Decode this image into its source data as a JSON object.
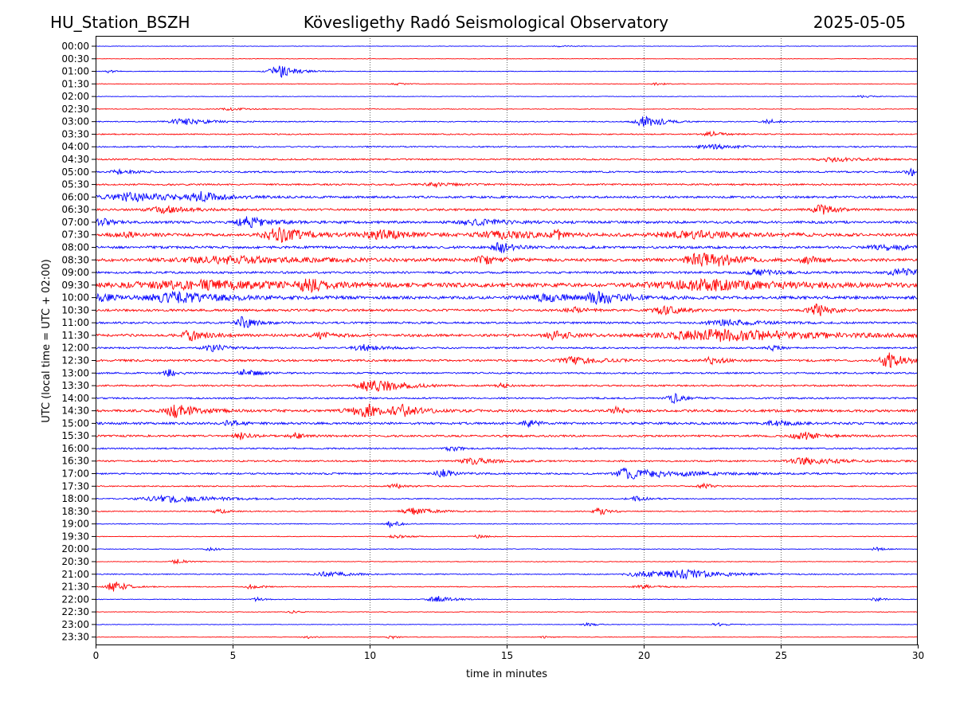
{
  "header": {
    "station": "HU_Station_BSZH",
    "observatory": "Kövesligethy Radó Seismological Observatory",
    "date": "2025-05-05"
  },
  "chart_data": {
    "type": "line",
    "title": "Kövesligethy Radó Seismological Observatory",
    "xlabel": "time in minutes",
    "ylabel": "UTC (local time = UTC + 02:00)",
    "xlim": [
      0,
      30
    ],
    "x_ticks": [
      0,
      5,
      10,
      15,
      20,
      25,
      30
    ],
    "x_gridlines": [
      5,
      10,
      15,
      20,
      25
    ],
    "grid": "vertical dotted",
    "colors": {
      "even_rows": "#0000ff",
      "odd_rows": "#ff0000"
    },
    "rows": [
      {
        "label": "00:00",
        "noise": 0.3,
        "events": [
          {
            "t": 17.0,
            "amp": 1.0,
            "dur": 0.4
          }
        ]
      },
      {
        "label": "00:30",
        "noise": 0.3,
        "events": []
      },
      {
        "label": "01:00",
        "noise": 0.35,
        "events": [
          {
            "t": 6.7,
            "amp": 9,
            "dur": 0.5
          },
          {
            "t": 0.5,
            "amp": 2,
            "dur": 0.2
          }
        ]
      },
      {
        "label": "01:30",
        "noise": 0.35,
        "events": [
          {
            "t": 11.0,
            "amp": 1.5,
            "dur": 0.3
          },
          {
            "t": 20.5,
            "amp": 1.5,
            "dur": 0.3
          }
        ]
      },
      {
        "label": "02:00",
        "noise": 0.35,
        "events": [
          {
            "t": 28.0,
            "amp": 1.2,
            "dur": 0.4
          }
        ]
      },
      {
        "label": "02:30",
        "noise": 0.4,
        "events": [
          {
            "t": 5.0,
            "amp": 1.5,
            "dur": 0.6
          }
        ]
      },
      {
        "label": "03:00",
        "noise": 0.6,
        "events": [
          {
            "t": 3.3,
            "amp": 4,
            "dur": 0.8
          },
          {
            "t": 20.1,
            "amp": 8,
            "dur": 0.5
          },
          {
            "t": 24.6,
            "amp": 3,
            "dur": 0.3
          }
        ]
      },
      {
        "label": "03:30",
        "noise": 0.7,
        "events": [
          {
            "t": 22.5,
            "amp": 3,
            "dur": 0.4
          }
        ]
      },
      {
        "label": "04:00",
        "noise": 0.8,
        "events": [
          {
            "t": 22.5,
            "amp": 3,
            "dur": 0.8
          }
        ]
      },
      {
        "label": "04:30",
        "noise": 0.9,
        "events": [
          {
            "t": 27.0,
            "amp": 3,
            "dur": 0.8
          }
        ]
      },
      {
        "label": "05:00",
        "noise": 1.0,
        "events": [
          {
            "t": 0.9,
            "amp": 3,
            "dur": 0.4
          },
          {
            "t": 29.8,
            "amp": 4,
            "dur": 0.3
          }
        ]
      },
      {
        "label": "05:30",
        "noise": 1.0,
        "events": [
          {
            "t": 12.5,
            "amp": 2.5,
            "dur": 0.6
          }
        ]
      },
      {
        "label": "06:00",
        "noise": 1.3,
        "events": [
          {
            "t": 1.5,
            "amp": 5,
            "dur": 1.5
          },
          {
            "t": 3.9,
            "amp": 5,
            "dur": 0.6
          }
        ]
      },
      {
        "label": "06:30",
        "noise": 1.3,
        "events": [
          {
            "t": 2.5,
            "amp": 4,
            "dur": 0.8
          },
          {
            "t": 26.5,
            "amp": 6,
            "dur": 0.4
          }
        ]
      },
      {
        "label": "07:00",
        "noise": 1.5,
        "events": [
          {
            "t": 0.2,
            "amp": 5,
            "dur": 0.3
          },
          {
            "t": 5.6,
            "amp": 7,
            "dur": 0.6
          },
          {
            "t": 14.0,
            "amp": 3,
            "dur": 1.0
          }
        ]
      },
      {
        "label": "07:30",
        "noise": 1.6,
        "events": [
          {
            "t": 1.0,
            "amp": 4,
            "dur": 0.6
          },
          {
            "t": 6.8,
            "amp": 8,
            "dur": 1.0
          },
          {
            "t": 10.5,
            "amp": 5,
            "dur": 1.0
          },
          {
            "t": 15.0,
            "amp": 4,
            "dur": 1.5
          },
          {
            "t": 16.8,
            "amp": 6,
            "dur": 0.2
          },
          {
            "t": 22.0,
            "amp": 4,
            "dur": 2.0
          }
        ]
      },
      {
        "label": "08:00",
        "noise": 1.5,
        "events": [
          {
            "t": 14.8,
            "amp": 6,
            "dur": 0.4
          },
          {
            "t": 29.0,
            "amp": 3,
            "dur": 1.0
          }
        ]
      },
      {
        "label": "08:30",
        "noise": 1.8,
        "events": [
          {
            "t": 5.0,
            "amp": 4,
            "dur": 2.5
          },
          {
            "t": 14.2,
            "amp": 6,
            "dur": 0.4
          },
          {
            "t": 22.0,
            "amp": 9,
            "dur": 0.6
          },
          {
            "t": 23.0,
            "amp": 5,
            "dur": 0.6
          },
          {
            "t": 26.0,
            "amp": 4,
            "dur": 0.4
          }
        ]
      },
      {
        "label": "09:00",
        "noise": 1.3,
        "events": [
          {
            "t": 24.2,
            "amp": 4,
            "dur": 0.5
          },
          {
            "t": 29.5,
            "amp": 4,
            "dur": 0.8
          }
        ]
      },
      {
        "label": "09:30",
        "noise": 2.0,
        "events": [
          {
            "t": 4.0,
            "amp": 5,
            "dur": 4.0
          },
          {
            "t": 7.8,
            "amp": 6,
            "dur": 0.5
          },
          {
            "t": 22.5,
            "amp": 6,
            "dur": 3.0
          }
        ]
      },
      {
        "label": "10:00",
        "noise": 1.8,
        "events": [
          {
            "t": 0.2,
            "amp": 5,
            "dur": 0.4
          },
          {
            "t": 3.0,
            "amp": 6,
            "dur": 1.5
          },
          {
            "t": 16.5,
            "amp": 4,
            "dur": 1.0
          },
          {
            "t": 18.5,
            "amp": 7,
            "dur": 0.8
          }
        ]
      },
      {
        "label": "10:30",
        "noise": 1.4,
        "events": [
          {
            "t": 17.5,
            "amp": 4,
            "dur": 0.4
          },
          {
            "t": 20.8,
            "amp": 5,
            "dur": 0.6
          },
          {
            "t": 26.4,
            "amp": 7,
            "dur": 0.5
          }
        ]
      },
      {
        "label": "11:00",
        "noise": 1.2,
        "events": [
          {
            "t": 5.4,
            "amp": 7,
            "dur": 0.4
          },
          {
            "t": 23.0,
            "amp": 4,
            "dur": 1.0
          }
        ]
      },
      {
        "label": "11:30",
        "noise": 1.6,
        "events": [
          {
            "t": 3.5,
            "amp": 6,
            "dur": 0.5
          },
          {
            "t": 8.2,
            "amp": 4,
            "dur": 0.4
          },
          {
            "t": 16.8,
            "amp": 5,
            "dur": 0.5
          },
          {
            "t": 23.0,
            "amp": 7,
            "dur": 3.0
          }
        ]
      },
      {
        "label": "12:00",
        "noise": 1.0,
        "events": [
          {
            "t": 4.3,
            "amp": 4,
            "dur": 0.5
          },
          {
            "t": 9.8,
            "amp": 4,
            "dur": 0.6
          },
          {
            "t": 24.7,
            "amp": 3,
            "dur": 0.3
          }
        ]
      },
      {
        "label": "12:30",
        "noise": 1.3,
        "events": [
          {
            "t": 17.5,
            "amp": 4,
            "dur": 0.8
          },
          {
            "t": 22.5,
            "amp": 4,
            "dur": 0.4
          },
          {
            "t": 29.0,
            "amp": 9,
            "dur": 0.5
          }
        ]
      },
      {
        "label": "13:00",
        "noise": 1.0,
        "events": [
          {
            "t": 2.7,
            "amp": 4,
            "dur": 0.3
          },
          {
            "t": 5.5,
            "amp": 4,
            "dur": 0.4
          }
        ]
      },
      {
        "label": "13:30",
        "noise": 1.0,
        "events": [
          {
            "t": 9.9,
            "amp": 6,
            "dur": 0.5
          },
          {
            "t": 10.7,
            "amp": 5,
            "dur": 0.8
          },
          {
            "t": 14.8,
            "amp": 3,
            "dur": 0.2
          }
        ]
      },
      {
        "label": "14:00",
        "noise": 1.0,
        "events": [
          {
            "t": 21.1,
            "amp": 6,
            "dur": 0.3
          }
        ]
      },
      {
        "label": "14:30",
        "noise": 1.5,
        "events": [
          {
            "t": 3.0,
            "amp": 8,
            "dur": 0.6
          },
          {
            "t": 10.0,
            "amp": 7,
            "dur": 1.0
          },
          {
            "t": 11.2,
            "amp": 5,
            "dur": 0.4
          },
          {
            "t": 19.0,
            "amp": 4,
            "dur": 0.3
          }
        ]
      },
      {
        "label": "15:00",
        "noise": 1.4,
        "events": [
          {
            "t": 4.9,
            "amp": 4,
            "dur": 0.3
          },
          {
            "t": 15.8,
            "amp": 4,
            "dur": 0.3
          },
          {
            "t": 24.8,
            "amp": 4,
            "dur": 0.4
          }
        ]
      },
      {
        "label": "15:30",
        "noise": 1.2,
        "events": [
          {
            "t": 5.3,
            "amp": 4,
            "dur": 0.3
          },
          {
            "t": 7.3,
            "amp": 4,
            "dur": 0.3
          },
          {
            "t": 25.8,
            "amp": 5,
            "dur": 0.5
          }
        ]
      },
      {
        "label": "16:00",
        "noise": 0.9,
        "events": [
          {
            "t": 13.0,
            "amp": 3,
            "dur": 0.3
          }
        ]
      },
      {
        "label": "16:30",
        "noise": 1.0,
        "events": [
          {
            "t": 13.8,
            "amp": 4,
            "dur": 0.6
          },
          {
            "t": 26.0,
            "amp": 4,
            "dur": 1.0
          }
        ]
      },
      {
        "label": "17:00",
        "noise": 1.0,
        "events": [
          {
            "t": 12.7,
            "amp": 5,
            "dur": 0.4
          },
          {
            "t": 19.4,
            "amp": 8,
            "dur": 0.5
          },
          {
            "t": 21.0,
            "amp": 3,
            "dur": 1.5
          }
        ]
      },
      {
        "label": "17:30",
        "noise": 0.7,
        "events": [
          {
            "t": 11.0,
            "amp": 3,
            "dur": 0.4
          },
          {
            "t": 22.2,
            "amp": 3,
            "dur": 0.3
          }
        ]
      },
      {
        "label": "18:00",
        "noise": 0.6,
        "events": [
          {
            "t": 2.9,
            "amp": 4,
            "dur": 1.6
          },
          {
            "t": 19.7,
            "amp": 3,
            "dur": 0.4
          }
        ]
      },
      {
        "label": "18:30",
        "noise": 0.6,
        "events": [
          {
            "t": 4.5,
            "amp": 3,
            "dur": 0.3
          },
          {
            "t": 11.6,
            "amp": 5,
            "dur": 0.6
          },
          {
            "t": 18.4,
            "amp": 5,
            "dur": 0.3
          }
        ]
      },
      {
        "label": "19:00",
        "noise": 0.5,
        "events": [
          {
            "t": 10.8,
            "amp": 4,
            "dur": 0.3
          }
        ]
      },
      {
        "label": "19:30",
        "noise": 0.4,
        "events": [
          {
            "t": 11.0,
            "amp": 2,
            "dur": 0.4
          },
          {
            "t": 14.0,
            "amp": 2,
            "dur": 0.3
          }
        ]
      },
      {
        "label": "20:00",
        "noise": 0.4,
        "events": [
          {
            "t": 4.2,
            "amp": 2,
            "dur": 0.3
          },
          {
            "t": 28.5,
            "amp": 2,
            "dur": 0.3
          }
        ]
      },
      {
        "label": "20:30",
        "noise": 0.4,
        "events": [
          {
            "t": 3.0,
            "amp": 3,
            "dur": 0.3
          }
        ]
      },
      {
        "label": "21:00",
        "noise": 0.6,
        "events": [
          {
            "t": 8.5,
            "amp": 3,
            "dur": 0.8
          },
          {
            "t": 20.0,
            "amp": 4,
            "dur": 0.8
          },
          {
            "t": 21.7,
            "amp": 5,
            "dur": 1.2
          }
        ]
      },
      {
        "label": "21:30",
        "noise": 0.5,
        "events": [
          {
            "t": 0.7,
            "amp": 7,
            "dur": 0.4
          },
          {
            "t": 5.7,
            "amp": 3,
            "dur": 0.3
          },
          {
            "t": 20.0,
            "amp": 2,
            "dur": 0.6
          }
        ]
      },
      {
        "label": "22:00",
        "noise": 0.4,
        "events": [
          {
            "t": 5.9,
            "amp": 3,
            "dur": 0.2
          },
          {
            "t": 12.5,
            "amp": 4,
            "dur": 0.5
          },
          {
            "t": 28.5,
            "amp": 2,
            "dur": 0.3
          }
        ]
      },
      {
        "label": "22:30",
        "noise": 0.35,
        "events": [
          {
            "t": 7.2,
            "amp": 1.5,
            "dur": 0.3
          }
        ]
      },
      {
        "label": "23:00",
        "noise": 0.35,
        "events": [
          {
            "t": 18.0,
            "amp": 2,
            "dur": 0.3
          },
          {
            "t": 22.7,
            "amp": 2,
            "dur": 0.3
          }
        ]
      },
      {
        "label": "23:30",
        "noise": 0.35,
        "events": [
          {
            "t": 7.7,
            "amp": 2,
            "dur": 0.2
          },
          {
            "t": 10.8,
            "amp": 2.5,
            "dur": 0.2
          },
          {
            "t": 16.4,
            "amp": 2,
            "dur": 0.2
          }
        ]
      }
    ]
  }
}
